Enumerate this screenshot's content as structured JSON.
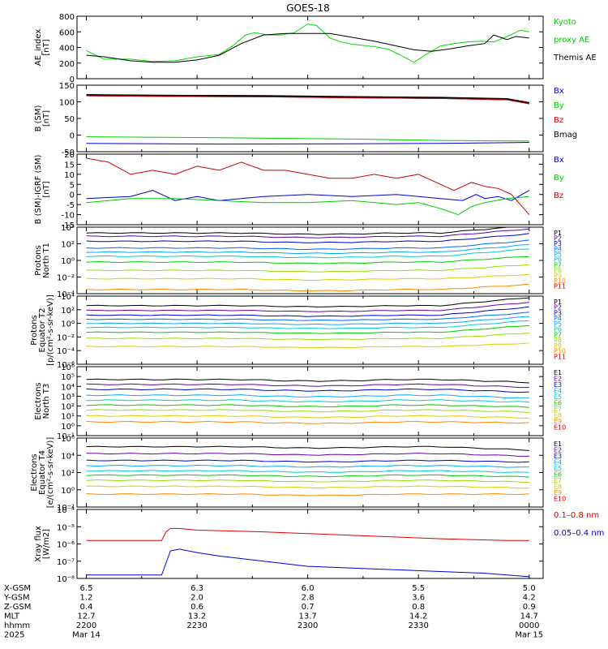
{
  "title": "GOES-18",
  "chart_data": {
    "type": "line",
    "title": "GOES-18",
    "time_range": [
      "2025-03-14 22:00",
      "2025-03-15 00:00"
    ],
    "panels": [
      {
        "id": "ae",
        "ylabel": [
          "AE_index",
          "[nT]"
        ],
        "ylim": [
          0,
          800
        ],
        "ticks": [
          "800",
          "600",
          "400",
          "200",
          "0"
        ],
        "tick_values": [
          800,
          600,
          400,
          200,
          0
        ],
        "log": false,
        "legend": [
          {
            "name": "Kyoto",
            "color": "#00cc00"
          },
          {
            "name": "proxy AE",
            "color": "#00cc00"
          },
          {
            "name": "Themis AE",
            "color": "#000000"
          }
        ],
        "series": [
          {
            "name": "Kyoto proxy AE",
            "color": "#00dd00",
            "x": [
              0,
              0.04,
              0.1,
              0.15,
              0.2,
              0.25,
              0.3,
              0.33,
              0.36,
              0.38,
              0.41,
              0.44,
              0.47,
              0.5,
              0.52,
              0.55,
              0.57,
              0.6,
              0.62,
              0.65,
              0.68,
              0.71,
              0.74,
              0.77,
              0.8,
              0.83,
              0.86,
              0.89,
              0.92,
              0.95,
              0.98,
              1.0
            ],
            "values": [
              360,
              250,
              250,
              220,
              230,
              280,
              310,
              420,
              560,
              590,
              560,
              560,
              590,
              700,
              680,
              520,
              480,
              440,
              430,
              410,
              380,
              300,
              210,
              320,
              420,
              450,
              470,
              480,
              470,
              540,
              620,
              600
            ]
          },
          {
            "name": "Themis AE",
            "color": "#000000",
            "x": [
              0,
              0.04,
              0.1,
              0.15,
              0.2,
              0.25,
              0.3,
              0.35,
              0.4,
              0.45,
              0.5,
              0.55,
              0.6,
              0.65,
              0.7,
              0.74,
              0.78,
              0.82,
              0.86,
              0.9,
              0.92,
              0.95,
              0.97,
              1.0
            ],
            "values": [
              300,
              280,
              230,
              210,
              210,
              240,
              300,
              450,
              560,
              580,
              580,
              580,
              530,
              480,
              420,
              370,
              350,
              380,
              420,
              450,
              560,
              500,
              540,
              520
            ]
          }
        ]
      },
      {
        "id": "bsm",
        "ylabel": [
          "B (SM)",
          "[nT]"
        ],
        "ylim": [
          -50,
          150
        ],
        "ticks": [
          "150",
          "100",
          "50",
          "0",
          "-50"
        ],
        "tick_values": [
          150,
          100,
          50,
          0,
          -50
        ],
        "log": false,
        "legend": [
          {
            "name": "Bx",
            "color": "#0000cc"
          },
          {
            "name": "By",
            "color": "#00cc00"
          },
          {
            "name": "Bz",
            "color": "#cc0000"
          },
          {
            "name": "Bmag",
            "color": "#000000"
          }
        ],
        "series": [
          {
            "name": "Bmag",
            "color": "#000000",
            "x": [
              0,
              0.2,
              0.4,
              0.6,
              0.8,
              0.95,
              1.0
            ],
            "values": [
              120,
              118,
              117,
              114,
              112,
              108,
              96
            ]
          },
          {
            "name": "Bz",
            "color": "#cc0000",
            "x": [
              0,
              0.2,
              0.4,
              0.6,
              0.8,
              0.95,
              1.0
            ],
            "values": [
              118,
              116,
              115,
              112,
              110,
              106,
              94
            ]
          },
          {
            "name": "By",
            "color": "#00cc00",
            "x": [
              0,
              0.3,
              0.6,
              0.8,
              1.0
            ],
            "values": [
              -5,
              -8,
              -12,
              -16,
              -18
            ]
          },
          {
            "name": "Bx",
            "color": "#0000cc",
            "x": [
              0,
              0.3,
              0.6,
              0.8,
              1.0
            ],
            "values": [
              -25,
              -27,
              -26,
              -25,
              -22
            ]
          }
        ]
      },
      {
        "id": "bsm_igrf",
        "ylabel": [
          "B (SM)-IGRF (SM)",
          "[nT]"
        ],
        "ylim": [
          -15,
          20
        ],
        "ticks": [
          "20",
          "15",
          "10",
          "5",
          "0",
          "-5",
          "-10",
          "-15"
        ],
        "tick_values": [
          20,
          15,
          10,
          5,
          0,
          -5,
          -10,
          -15
        ],
        "log": false,
        "legend": [
          {
            "name": "Bx",
            "color": "#0000cc"
          },
          {
            "name": "By",
            "color": "#00cc00"
          },
          {
            "name": "Bz",
            "color": "#cc0000"
          }
        ],
        "series": [
          {
            "name": "Bz",
            "color": "#cc0000",
            "x": [
              0,
              0.05,
              0.1,
              0.15,
              0.2,
              0.25,
              0.3,
              0.35,
              0.4,
              0.45,
              0.5,
              0.55,
              0.6,
              0.65,
              0.7,
              0.75,
              0.8,
              0.83,
              0.87,
              0.9,
              0.93,
              0.96,
              1.0
            ],
            "values": [
              18,
              16,
              10,
              12,
              10,
              14,
              12,
              16,
              12,
              12,
              10,
              8,
              8,
              10,
              8,
              10,
              5,
              2,
              6,
              4,
              3,
              0,
              -10
            ]
          },
          {
            "name": "Bx",
            "color": "#0000cc",
            "x": [
              0,
              0.1,
              0.15,
              0.2,
              0.25,
              0.3,
              0.4,
              0.5,
              0.6,
              0.7,
              0.8,
              0.85,
              0.88,
              0.9,
              0.93,
              0.96,
              1.0
            ],
            "values": [
              -2,
              -1,
              2,
              -3,
              -1,
              -3,
              -1,
              0,
              -1,
              0,
              -2,
              -3,
              0,
              -2,
              -1,
              -3,
              2
            ]
          },
          {
            "name": "By",
            "color": "#00cc00",
            "x": [
              0,
              0.1,
              0.2,
              0.3,
              0.4,
              0.5,
              0.6,
              0.7,
              0.75,
              0.8,
              0.84,
              0.87,
              0.9,
              0.95,
              1.0
            ],
            "values": [
              -4,
              -2,
              -2,
              -3,
              -4,
              -4,
              -3,
              -5,
              -4,
              -7,
              -10,
              -6,
              -4,
              -2,
              -1
            ]
          }
        ]
      },
      {
        "id": "protons_t1",
        "ylabel": [
          "Protons",
          "North T1"
        ],
        "ylim_log10": [
          -4,
          4
        ],
        "ticks": [
          "10⁴",
          "10²",
          "10⁰",
          "10⁻²",
          "10⁻⁴"
        ],
        "tick_values": [
          4,
          2,
          0,
          -2,
          -4
        ],
        "log": true,
        "legend": [
          {
            "name": "P1",
            "color": "#000000"
          },
          {
            "name": "P2",
            "color": "#6600aa"
          },
          {
            "name": "P3",
            "color": "#0000cc"
          },
          {
            "name": "P4",
            "color": "#0066ff"
          },
          {
            "name": "P5",
            "color": "#00aaff"
          },
          {
            "name": "P6",
            "color": "#00cccc"
          },
          {
            "name": "P7",
            "color": "#00cc00"
          },
          {
            "name": "P8",
            "color": "#99dd00"
          },
          {
            "name": "P9",
            "color": "#ddcc00"
          },
          {
            "name": "P10",
            "color": "#ff8800"
          },
          {
            "name": "P11",
            "color": "#cc0000"
          }
        ],
        "levels_log10": [
          3.3,
          2.9,
          2.3,
          1.5,
          1.0,
          0.5,
          -0.2,
          -1.2,
          -2.2,
          -3.5
        ],
        "end_rise": [
          0.9,
          0.9,
          0.9,
          0.9,
          0.9,
          0.9,
          0.7,
          0.7,
          0.5,
          0.6
        ]
      },
      {
        "id": "protons_t2",
        "ylabel": [
          "Protons",
          "Equator T2",
          "[p/(cm²-s-sr-keV)]"
        ],
        "ylim_log10": [
          -6,
          4
        ],
        "ticks": [
          "10⁴",
          "10²",
          "10⁰",
          "10⁻²",
          "10⁻⁴",
          "10⁻⁶"
        ],
        "tick_values": [
          4,
          2,
          0,
          -2,
          -4,
          -6
        ],
        "log": true,
        "legend": [
          {
            "name": "P1",
            "color": "#000000"
          },
          {
            "name": "P2",
            "color": "#6600aa"
          },
          {
            "name": "P3",
            "color": "#0000cc"
          },
          {
            "name": "P4",
            "color": "#0066ff"
          },
          {
            "name": "P5",
            "color": "#00aaff"
          },
          {
            "name": "P6",
            "color": "#00cccc"
          },
          {
            "name": "P7",
            "color": "#00cc00"
          },
          {
            "name": "P8",
            "color": "#99dd00"
          },
          {
            "name": "P9",
            "color": "#ddcc00"
          },
          {
            "name": "P10",
            "color": "#ff8800"
          },
          {
            "name": "P11",
            "color": "#cc0000"
          }
        ],
        "levels_log10": [
          2.6,
          1.9,
          1.2,
          0.6,
          0.0,
          -0.6,
          -1.3,
          -2.2,
          -3.4
        ],
        "end_rise": [
          1.2,
          1.2,
          1.2,
          1.0,
          1.0,
          1.0,
          1.0,
          0.8,
          0.5
        ]
      },
      {
        "id": "electrons_t3",
        "ylabel": [
          "Electrons",
          "North T3"
        ],
        "ylim_log10": [
          -1,
          6
        ],
        "ticks": [
          "10⁶",
          "10⁵",
          "10⁴",
          "10³",
          "10²",
          "10¹",
          "10⁰",
          "10⁻¹"
        ],
        "tick_values": [
          6,
          5,
          4,
          3,
          2,
          1,
          0,
          -1
        ],
        "log": true,
        "legend": [
          {
            "name": "E1",
            "color": "#000000"
          },
          {
            "name": "E2",
            "color": "#6600aa"
          },
          {
            "name": "E3",
            "color": "#0000cc"
          },
          {
            "name": "E4",
            "color": "#00aaff"
          },
          {
            "name": "E5",
            "color": "#00cccc"
          },
          {
            "name": "E6",
            "color": "#00cc00"
          },
          {
            "name": "E7",
            "color": "#99dd00"
          },
          {
            "name": "E8",
            "color": "#ddcc00"
          },
          {
            "name": "E9",
            "color": "#ff8800"
          },
          {
            "name": "E10",
            "color": "#cc0000"
          }
        ],
        "levels_log10": [
          4.7,
          4.2,
          3.7,
          3.1,
          2.6,
          2.1,
          1.6,
          1.0,
          0.4
        ],
        "end_rise": [
          -0.3,
          -0.3,
          -0.3,
          -0.3,
          -0.2,
          -0.2,
          -0.2,
          -0.2,
          -0.1
        ]
      },
      {
        "id": "electrons_t4",
        "ylabel": [
          "Electrons",
          "Equator T4",
          "[e/(cm²-s-sr-keV)]"
        ],
        "ylim_log10": [
          -2,
          6
        ],
        "ticks": [
          "10⁶",
          "10⁴",
          "10²",
          "10⁰",
          "10⁻²"
        ],
        "tick_values": [
          6,
          4,
          2,
          0,
          -2
        ],
        "log": true,
        "legend": [
          {
            "name": "E1",
            "color": "#000000"
          },
          {
            "name": "E2",
            "color": "#6600aa"
          },
          {
            "name": "E3",
            "color": "#0000cc"
          },
          {
            "name": "E4",
            "color": "#00aaff"
          },
          {
            "name": "E5",
            "color": "#00cccc"
          },
          {
            "name": "E6",
            "color": "#00cc00"
          },
          {
            "name": "E7",
            "color": "#99dd00"
          },
          {
            "name": "E8",
            "color": "#ddcc00"
          },
          {
            "name": "E9",
            "color": "#ff8800"
          },
          {
            "name": "E10",
            "color": "#cc0000"
          }
        ],
        "levels_log10": [
          5.0,
          4.2,
          3.4,
          2.8,
          2.2,
          1.7,
          1.1,
          0.4,
          -0.5
        ],
        "end_rise": [
          -0.4,
          -0.3,
          -0.2,
          -0.2,
          -0.2,
          -0.2,
          -0.2,
          -0.2,
          0
        ]
      },
      {
        "id": "xray",
        "ylabel": [
          "Xray flux",
          "[W/m2]"
        ],
        "ylim_log10": [
          -8,
          -4
        ],
        "ticks": [
          "10⁻⁴",
          "10⁻⁵",
          "10⁻⁶",
          "10⁻⁷",
          "10⁻⁸"
        ],
        "tick_values": [
          -4,
          -5,
          -6,
          -7,
          -8
        ],
        "log": true,
        "legend": [
          {
            "name": "0.1–0.8 nm",
            "color": "#cc0000"
          },
          {
            "name": "0.05–0.4 nm",
            "color": "#0000cc"
          }
        ],
        "series": [
          {
            "name": "0.1-0.8 nm",
            "color": "#dd0000",
            "x": [
              0,
              0.17,
              0.18,
              0.19,
              0.21,
              0.25,
              0.4,
              0.6,
              0.8,
              0.95,
              1.0
            ],
            "values": [
              -5.8,
              -5.8,
              -5.3,
              -5.1,
              -5.1,
              -5.2,
              -5.3,
              -5.5,
              -5.7,
              -5.8,
              -5.8
            ]
          },
          {
            "name": "0.05-0.4 nm",
            "color": "#0000dd",
            "x": [
              0,
              0.17,
              0.19,
              0.21,
              0.25,
              0.3,
              0.4,
              0.5,
              0.6,
              0.7,
              0.8,
              0.9,
              0.95,
              1.0
            ],
            "values": [
              -7.8,
              -7.8,
              -6.4,
              -6.3,
              -6.5,
              -6.7,
              -7.0,
              -7.3,
              -7.4,
              -7.5,
              -7.6,
              -7.7,
              -7.8,
              -7.9
            ]
          }
        ]
      }
    ],
    "xaxis": {
      "row_labels": [
        "X-GSM",
        "Y-GSM",
        "Z-GSM",
        "MLT",
        "hhmm",
        "2025"
      ],
      "columns": [
        {
          "x": 0,
          "values": [
            "6.5",
            "1.2",
            "0.4",
            "12.7",
            "2200",
            "Mar 14"
          ]
        },
        {
          "x": 0.25,
          "values": [
            "6.3",
            "2.0",
            "0.6",
            "13.2",
            "2230",
            ""
          ]
        },
        {
          "x": 0.5,
          "values": [
            "6.0",
            "2.8",
            "0.7",
            "13.7",
            "2300",
            ""
          ]
        },
        {
          "x": 0.75,
          "values": [
            "5.5",
            "3.6",
            "0.8",
            "14.2",
            "2330",
            ""
          ]
        },
        {
          "x": 1.0,
          "values": [
            "5.0",
            "4.2",
            "0.9",
            "14.7",
            "0000",
            "Mar 15"
          ]
        }
      ]
    }
  }
}
